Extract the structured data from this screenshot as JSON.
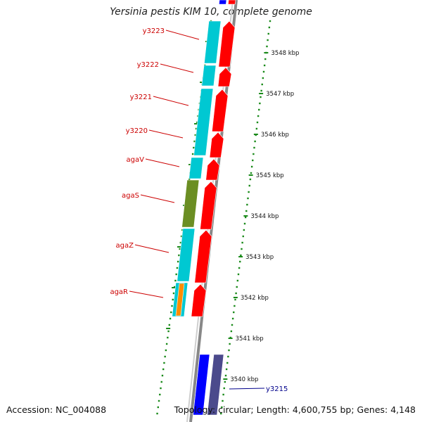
{
  "title": "Yersinia pestis KIM 10, complete genome",
  "accession": "Accession: NC_004088",
  "summary": "Topology: circular; Length: 4,600,755 bp; Genes: 4,148",
  "colors": {
    "forward_gene": "#ff0000",
    "reverse_gene": "#0000ff",
    "label_forward": "#cc0000",
    "label_reverse": "#00008b",
    "cyan": "#00c8d2",
    "olive": "#6b8e23",
    "orange": "#ff8c00",
    "slate": "#4b4a8c",
    "ring": "#888888",
    "tick": "#1a8a1a"
  },
  "genes": [
    {
      "name": "y3223",
      "strand": "forward"
    },
    {
      "name": "y3222",
      "strand": "forward"
    },
    {
      "name": "y3221",
      "strand": "forward"
    },
    {
      "name": "y3220",
      "strand": "forward"
    },
    {
      "name": "agaV",
      "strand": "forward"
    },
    {
      "name": "agaS",
      "strand": "forward"
    },
    {
      "name": "agaZ",
      "strand": "forward"
    },
    {
      "name": "agaR",
      "strand": "forward"
    },
    {
      "name": "y3215",
      "strand": "reverse"
    }
  ],
  "positions": [
    "3548 kbp",
    "3547 kbp",
    "3546 kbp",
    "3545 kbp",
    "3544 kbp",
    "3543 kbp",
    "3542 kbp",
    "3541 kbp",
    "3540 kbp"
  ]
}
